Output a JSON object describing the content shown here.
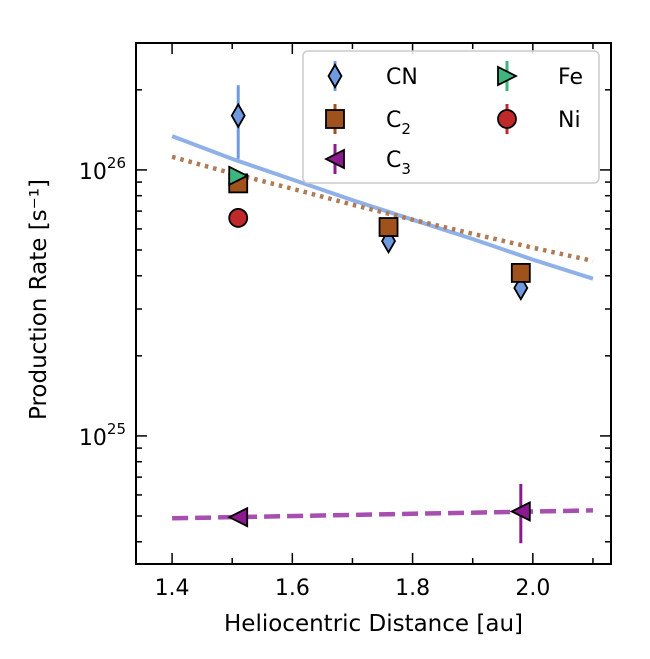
{
  "chart_data": {
    "type": "scatter",
    "xlabel": "Heliocentric Distance [au]",
    "ylabel": "Production Rate [s⁻¹]",
    "yscale": "log",
    "xlim": [
      1.34,
      2.13
    ],
    "ylim": [
      3.3e+24,
      3e+26
    ],
    "xticks": [
      1.4,
      1.6,
      1.8,
      2.0
    ],
    "xtick_labels": [
      "1.4",
      "1.6",
      "1.8",
      "2.0"
    ],
    "ytick_labels": [
      {
        "value": 1e+25,
        "base": "10",
        "exp": "25"
      },
      {
        "value": 1e+26,
        "base": "10",
        "exp": "26"
      }
    ],
    "legend_position": "top-right",
    "series": [
      {
        "name": "CN",
        "label_base": "CN",
        "label_sub": "",
        "marker": "diamond",
        "color": "#6f9ae0",
        "x": [
          1.51,
          1.76,
          1.98
        ],
        "y": [
          1.6e+26,
          5.4e+25,
          3.6e+25
        ],
        "yerr_low": [
          1.1e+26,
          null,
          null
        ],
        "yerr_high": [
          2.08e+26,
          null,
          null
        ]
      },
      {
        "name": "C2",
        "label_base": "C",
        "label_sub": "2",
        "marker": "square",
        "color": "#a0521c",
        "x": [
          1.51,
          1.76,
          1.98
        ],
        "y": [
          8.9e+25,
          6.1e+25,
          4.1e+25
        ],
        "yerr_low": [
          null,
          null,
          null
        ],
        "yerr_high": [
          null,
          null,
          null
        ]
      },
      {
        "name": "C3",
        "label_base": "C",
        "label_sub": "3",
        "marker": "triangle-left",
        "color": "#8b1a8f",
        "x": [
          1.51,
          1.98
        ],
        "y": [
          4.95e+24,
          5.2e+24
        ],
        "yerr_low": [
          null,
          3.95e+24
        ],
        "yerr_high": [
          null,
          6.6e+24
        ]
      },
      {
        "name": "Fe",
        "label_base": "Fe",
        "label_sub": "",
        "marker": "triangle-right",
        "color": "#3fb57e",
        "x": [
          1.51
        ],
        "y": [
          9.5e+25
        ],
        "yerr_low": [
          null
        ],
        "yerr_high": [
          null
        ]
      },
      {
        "name": "Ni",
        "label_base": "Ni",
        "label_sub": "",
        "marker": "circle",
        "color": "#c0292a",
        "x": [
          1.51
        ],
        "y": [
          6.6e+25
        ],
        "yerr_low": [
          null
        ],
        "yerr_high": [
          null
        ]
      }
    ],
    "fits": [
      {
        "name": "CN fit",
        "style": "solid",
        "color": "#8fb1e8",
        "points": [
          [
            1.4,
            1.34e+26
          ],
          [
            1.5,
            1.1e+26
          ],
          [
            1.6,
            9.2e+25
          ],
          [
            1.7,
            7.7e+25
          ],
          [
            1.8,
            6.5e+25
          ],
          [
            1.9,
            5.5e+25
          ],
          [
            2.0,
            4.6e+25
          ],
          [
            2.1,
            3.9e+25
          ]
        ]
      },
      {
        "name": "C2 fit",
        "style": "dotted",
        "color": "#b07a54",
        "points": [
          [
            1.4,
            1.12e+26
          ],
          [
            1.5,
            9.7e+25
          ],
          [
            1.6,
            8.5e+25
          ],
          [
            1.7,
            7.4e+25
          ],
          [
            1.8,
            6.5e+25
          ],
          [
            1.9,
            5.75e+25
          ],
          [
            2.0,
            5.1e+25
          ],
          [
            2.1,
            4.55e+25
          ]
        ]
      },
      {
        "name": "C3 fit",
        "style": "dashed",
        "color": "#a74fae",
        "points": [
          [
            1.4,
            4.9e+24
          ],
          [
            2.1,
            5.25e+24
          ]
        ]
      }
    ]
  }
}
